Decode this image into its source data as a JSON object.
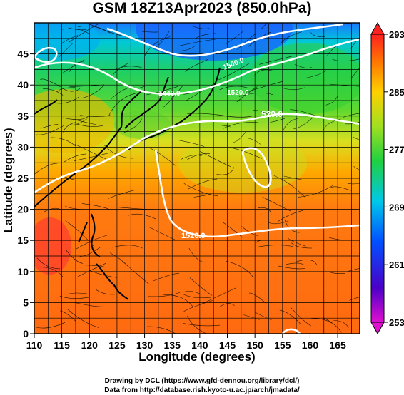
{
  "title": "GSM 18Z13Apr2023 (850.0hPa)",
  "xlabel": "Longitude (degrees)",
  "ylabel": "Latitude  (degrees)",
  "x_ticks": [
    "110",
    "115",
    "120",
    "125",
    "130",
    "135",
    "140",
    "145",
    "150",
    "155",
    "160",
    "165"
  ],
  "y_ticks": [
    "0",
    "5",
    "10",
    "15",
    "20",
    "25",
    "30",
    "35",
    "40",
    "45"
  ],
  "colorbar_ticks": [
    "253",
    "261",
    "269",
    "277",
    "285",
    "293"
  ],
  "contour_labels": [
    "1440.0",
    "1500.0",
    "1520.0",
    "520.0",
    "1520.0"
  ],
  "credits": [
    "Drawing by DCL (https://www.gfd-dennou.org/library/dcl/)",
    "Data from http://database.rish.kyoto-u.ac.jp/arch/jmadata/"
  ],
  "map": {
    "lon_range": [
      110,
      169
    ],
    "lat_range": [
      0,
      50
    ],
    "field": "temperature",
    "units": "K",
    "colorbar_range": [
      253,
      293
    ]
  }
}
